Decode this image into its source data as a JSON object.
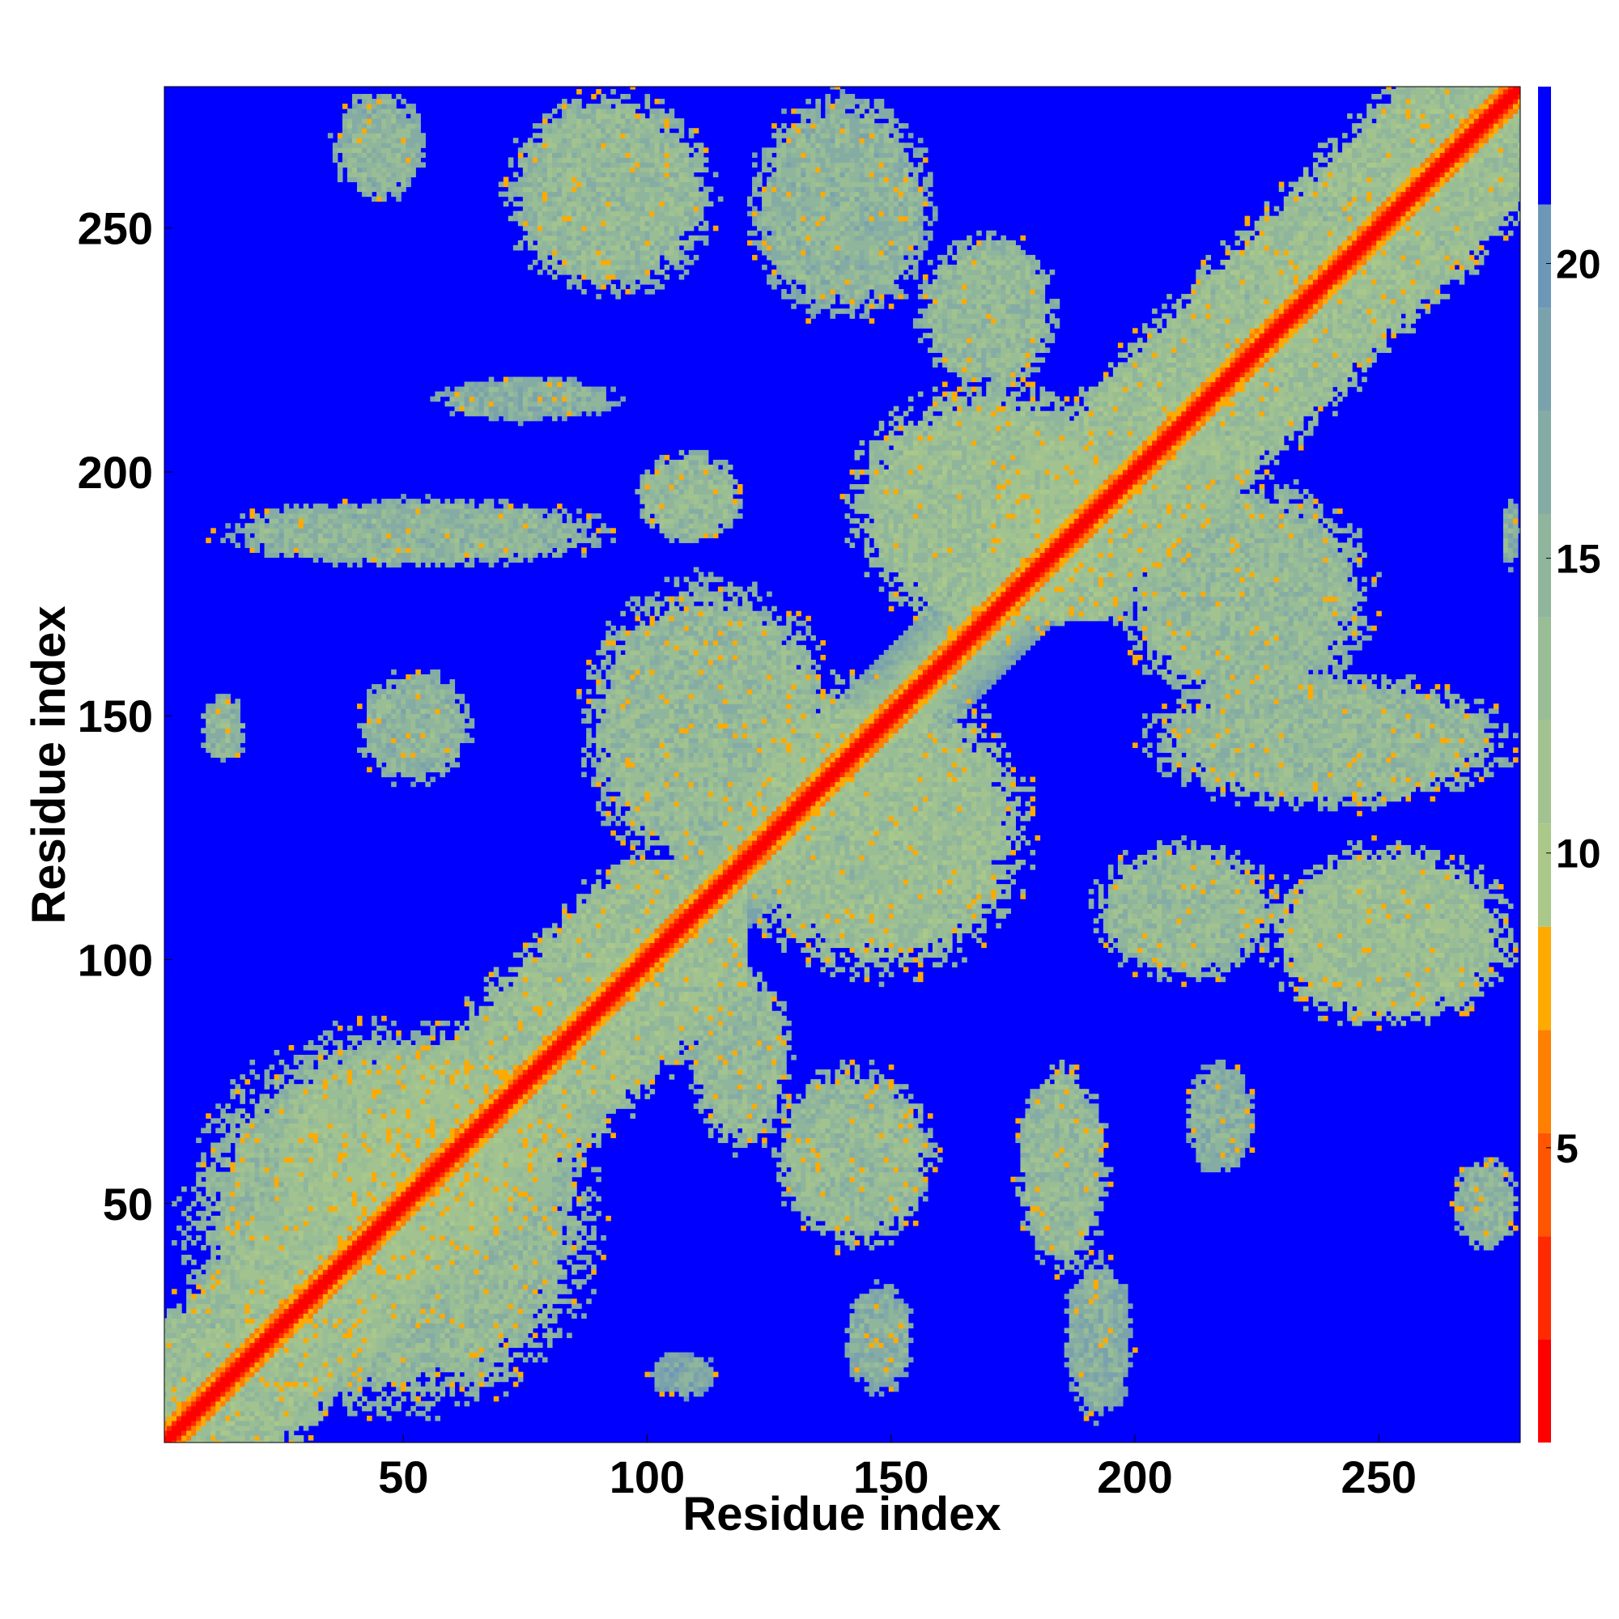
{
  "chart_data": {
    "type": "heatmap",
    "title": "",
    "xlabel": "Residue index",
    "ylabel": "Residue index",
    "xlim": [
      1,
      279
    ],
    "ylim": [
      1,
      279
    ],
    "x_ticks": [
      50,
      100,
      150,
      200,
      250
    ],
    "y_ticks": [
      50,
      100,
      150,
      200,
      250
    ],
    "grid": false,
    "legend": "colorbar-right",
    "colorbar": {
      "range": [
        0,
        23
      ],
      "ticks": [
        5,
        10,
        15,
        20
      ],
      "levels": [
        {
          "max": 1.75,
          "color": "#ff0000"
        },
        {
          "max": 3.5,
          "color": "#ff2a00"
        },
        {
          "max": 5.25,
          "color": "#ff5500"
        },
        {
          "max": 7.0,
          "color": "#ff7f00"
        },
        {
          "max": 8.75,
          "color": "#ffaa00"
        },
        {
          "max": 10.5,
          "color": "#aac88a"
        },
        {
          "max": 12.25,
          "color": "#a2c38f"
        },
        {
          "max": 14.0,
          "color": "#99bd95"
        },
        {
          "max": 15.75,
          "color": "#8fb59c"
        },
        {
          "max": 17.5,
          "color": "#85aca4"
        },
        {
          "max": 19.25,
          "color": "#7aa2ad"
        },
        {
          "max": 21.0,
          "color": "#6d97b7"
        },
        {
          "max": 23.0,
          "color": "#0000ff"
        }
      ]
    },
    "background_value": 23,
    "diagonal_width": 3,
    "contact_regions": [
      {
        "x": [
          1,
          120
        ],
        "y": [
          1,
          120
        ],
        "value": 13,
        "note": "near-diagonal band"
      },
      {
        "x": [
          3,
          92
        ],
        "y": [
          5,
          88
        ],
        "value": 14,
        "note": "lower-left block"
      },
      {
        "x": [
          20,
          80
        ],
        "y": [
          35,
          85
        ],
        "value": 13
      },
      {
        "x": [
          170,
          279
        ],
        "y": [
          170,
          279
        ],
        "value": 13,
        "note": "upper-right band"
      },
      {
        "x": [
          8,
          18
        ],
        "y": [
          140,
          155
        ],
        "value": 15
      },
      {
        "x": [
          40,
          65
        ],
        "y": [
          135,
          160
        ],
        "value": 15
      },
      {
        "x": [
          10,
          95
        ],
        "y": [
          180,
          195
        ],
        "value": 15
      },
      {
        "x": [
          55,
          95
        ],
        "y": [
          210,
          220
        ],
        "value": 16
      },
      {
        "x": [
          35,
          55
        ],
        "y": [
          255,
          279
        ],
        "value": 15
      },
      {
        "x": [
          70,
          115
        ],
        "y": [
          235,
          279
        ],
        "value": 14
      },
      {
        "x": [
          120,
          160
        ],
        "y": [
          230,
          279
        ],
        "value": 15
      },
      {
        "x": [
          155,
          185
        ],
        "y": [
          215,
          250
        ],
        "value": 14
      },
      {
        "x": [
          97,
          120
        ],
        "y": [
          185,
          205
        ],
        "value": 14
      },
      {
        "x": [
          85,
          140
        ],
        "y": [
          115,
          180
        ],
        "value": 14
      },
      {
        "x": [
          115,
          180
        ],
        "y": [
          95,
          160
        ],
        "value": 13
      },
      {
        "x": [
          140,
          200
        ],
        "y": [
          165,
          220
        ],
        "value": 13
      },
      {
        "x": [
          108,
          130
        ],
        "y": [
          60,
          100
        ],
        "value": 14
      },
      {
        "x": [
          125,
          160
        ],
        "y": [
          40,
          80
        ],
        "value": 14
      },
      {
        "x": [
          175,
          195
        ],
        "y": [
          35,
          80
        ],
        "value": 14
      },
      {
        "x": [
          185,
          200
        ],
        "y": [
          5,
          40
        ],
        "value": 16
      },
      {
        "x": [
          140,
          155
        ],
        "y": [
          10,
          35
        ],
        "value": 16
      },
      {
        "x": [
          100,
          115
        ],
        "y": [
          10,
          20
        ],
        "value": 17
      },
      {
        "x": [
          210,
          225
        ],
        "y": [
          55,
          80
        ],
        "value": 16
      },
      {
        "x": [
          190,
          230
        ],
        "y": [
          95,
          125
        ],
        "value": 14
      },
      {
        "x": [
          225,
          279
        ],
        "y": [
          85,
          125
        ],
        "value": 13
      },
      {
        "x": [
          200,
          279
        ],
        "y": [
          130,
          160
        ],
        "value": 14
      },
      {
        "x": [
          195,
          250
        ],
        "y": [
          150,
          200
        ],
        "value": 14
      },
      {
        "x": [
          265,
          279
        ],
        "y": [
          40,
          60
        ],
        "value": 15
      },
      {
        "x": [
          275,
          279
        ],
        "y": [
          180,
          195
        ],
        "value": 16
      }
    ]
  }
}
